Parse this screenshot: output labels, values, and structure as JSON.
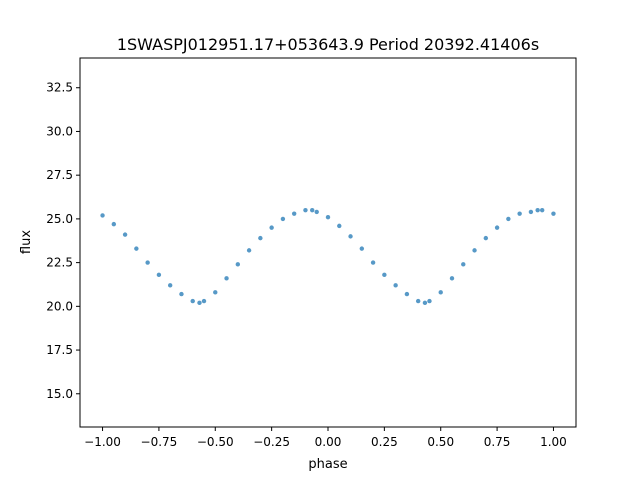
{
  "chart_data": {
    "type": "scatter",
    "title": "1SWASPJ012951.17+053643.9 Period 20392.41406s",
    "xlabel": "phase",
    "ylabel": "flux",
    "xlim": [
      -1.1,
      1.1
    ],
    "ylim": [
      13.1,
      34.2
    ],
    "xticks": [
      -1.0,
      -0.75,
      -0.5,
      -0.25,
      0.0,
      0.25,
      0.5,
      0.75,
      1.0
    ],
    "xtick_labels": [
      "−1.00",
      "−0.75",
      "−0.50",
      "−0.25",
      "0.00",
      "0.25",
      "0.50",
      "0.75",
      "1.00"
    ],
    "yticks": [
      15.0,
      17.5,
      20.0,
      22.5,
      25.0,
      27.5,
      30.0,
      32.5
    ],
    "ytick_labels": [
      "15.0",
      "17.5",
      "20.0",
      "22.5",
      "25.0",
      "27.5",
      "30.0",
      "32.5"
    ],
    "grid": false,
    "legend": "none",
    "marker_color": "#1f77b4",
    "series": [
      {
        "x": [
          -1.0,
          -0.95,
          -0.9,
          -0.85,
          -0.8,
          -0.75,
          -0.7,
          -0.65,
          -0.6,
          -0.57,
          -0.55,
          -0.5,
          -0.45,
          -0.4,
          -0.35,
          -0.3,
          -0.25,
          -0.2,
          -0.15,
          -0.1,
          -0.07,
          -0.05,
          0.0,
          0.05,
          0.1,
          0.15,
          0.2,
          0.25,
          0.3,
          0.35,
          0.4,
          0.43,
          0.45,
          0.5,
          0.55,
          0.6,
          0.65,
          0.7,
          0.75,
          0.8,
          0.85,
          0.9,
          0.93,
          0.95,
          1.0
        ],
        "y": [
          25.2,
          24.7,
          24.1,
          23.3,
          22.5,
          21.8,
          21.2,
          20.7,
          20.3,
          20.2,
          20.3,
          20.8,
          21.6,
          22.4,
          23.2,
          23.9,
          24.5,
          25.0,
          25.3,
          25.5,
          25.5,
          25.4,
          25.1,
          24.6,
          24.0,
          23.3,
          22.5,
          21.8,
          21.2,
          20.7,
          20.3,
          20.2,
          20.3,
          20.8,
          21.6,
          22.4,
          23.2,
          23.9,
          24.5,
          25.0,
          25.3,
          25.4,
          25.5,
          25.5,
          25.3
        ]
      }
    ]
  }
}
